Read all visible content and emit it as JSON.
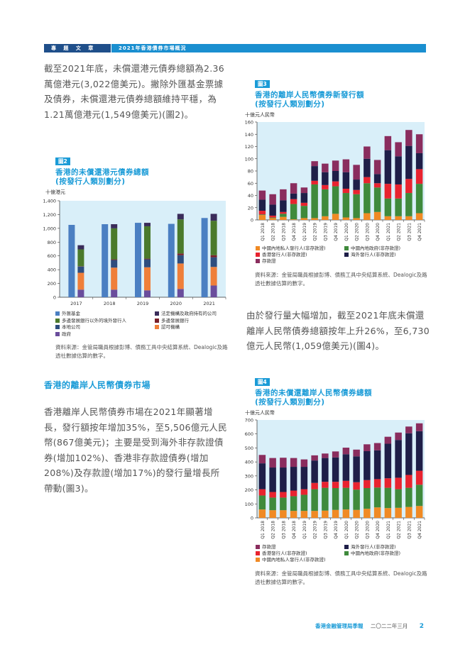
{
  "header": {
    "section": "專 題 文 章",
    "article": "2021年香港債券市場概況"
  },
  "paragraphs": [
    "截至2021年底，未償還港元債券總額為2.36萬億港元(3,022億美元)。撇除外匯基金票據及債券，未償還港元債券總額維持平穩，為1.21萬億港元(1,549億美元)(圖2)。",
    "香港離岸人民幣債券市場在2021年顯著增長，發行額按年增加35%，至5,506億元人民幣(867億美元)；主要是受到海外非存款證債券(增加102%)、香港非存款證債券(增加208%)及存款證(增加17%)的發行量增長所帶動(圖3)。",
    "由於發行量大幅增加，截至2021年底未償還離岸人民幣債券總額按年上升26%，至6,730億元人民幣(1,059億美元)(圖4)。"
  ],
  "section_heading": "香港的離岸人民幣債券市場",
  "footer": {
    "publication": "香港金融管理局季報",
    "date": "二〇二二年三月",
    "page": "2"
  },
  "colors": {
    "accent": "#1a9bd7",
    "header_dark": "#1f4f8a",
    "plot_bg": "#d9eff9"
  },
  "chart_data": [
    {
      "type": "bar",
      "tag": "圖2",
      "title": "香港的未償還港元債券總額",
      "subtitle": "(按發行人類別劃分)",
      "ylabel": "十億港元",
      "ylim": [
        0,
        1400
      ],
      "yticks": [
        0,
        200,
        400,
        600,
        800,
        1000,
        1200,
        1400
      ],
      "ytick_labels": [
        "0",
        "200",
        "400",
        "600",
        "800",
        "1,000",
        "1,200",
        "1,400"
      ],
      "categories": [
        "2017",
        "2018",
        "2019",
        "2020",
        "2021"
      ],
      "single_series": {
        "name": "外匯基金",
        "color": "#4b7fc2",
        "values": [
          1050,
          1060,
          1080,
          1065,
          1150
        ]
      },
      "stacked_series": [
        {
          "name": "政府",
          "color": "#6a4d9c",
          "values": [
            110,
            110,
            100,
            120,
            170
          ]
        },
        {
          "name": "認可機構",
          "color": "#ef7f3a",
          "values": [
            245,
            320,
            335,
            370,
            270
          ]
        },
        {
          "name": "本地公司",
          "color": "#2e4d7e",
          "values": [
            90,
            110,
            115,
            120,
            140
          ]
        },
        {
          "name": "多邊發展銀行",
          "color": "#7a1f2a",
          "values": [
            5,
            10,
            10,
            25,
            30
          ]
        },
        {
          "name": "多邊發展銀行以外的境外發行人",
          "color": "#4b7a2c",
          "values": [
            245,
            450,
            470,
            495,
            500
          ]
        },
        {
          "name": "法定機構及政府持有的公司",
          "color": "#3a2c5a",
          "values": [
            60,
            60,
            50,
            80,
            100
          ]
        }
      ],
      "legend_order": [
        "外匯基金",
        "法定機構及政府持有的公司",
        "多邊發展銀行以外的境外發行人",
        "多邊發展銀行",
        "本地公司",
        "認可機構",
        "政府"
      ],
      "source": "資料來源：金管局職員根據彭博、債務工具中央結算系統、Dealogic及路透社數據估算的數字。"
    },
    {
      "type": "bar",
      "tag": "圖3",
      "title": "香港的離岸人民幣債券新發行額",
      "subtitle": "(按發行人類別劃分)",
      "ylabel": "十億元人民幣",
      "ylim": [
        0,
        160
      ],
      "yticks": [
        0,
        20,
        40,
        60,
        80,
        100,
        120,
        140,
        160
      ],
      "ytick_labels": [
        "0",
        "20",
        "40",
        "60",
        "80",
        "100",
        "120",
        "140",
        "160"
      ],
      "categories": [
        "Q1 2018",
        "Q2 2018",
        "Q3 2018",
        "Q4 2018",
        "Q1 2019",
        "Q2 2019",
        "Q3 2019",
        "Q4 2019",
        "Q1 2020",
        "Q2 2020",
        "Q3 2020",
        "Q4 2020",
        "Q1 2021",
        "Q2 2021",
        "Q3 2021",
        "Q4 2021"
      ],
      "stacked_series": [
        {
          "name": "中國內地私人發行人(非存款證)",
          "color": "#f08a24",
          "values": [
            8,
            3,
            5,
            1,
            3,
            3,
            6,
            10,
            4,
            3,
            11,
            13,
            6,
            6,
            6,
            11
          ]
        },
        {
          "name": "中國內地政府(非存款證)",
          "color": "#3f8a3c",
          "values": [
            1,
            1,
            5,
            25,
            20,
            55,
            44,
            45,
            40,
            39,
            49,
            40,
            29,
            29,
            38,
            48
          ]
        },
        {
          "name": "香港發行人(非存款證)",
          "color": "#e8232f",
          "values": [
            6,
            3,
            3,
            8,
            5,
            6,
            7,
            8,
            7,
            7,
            10,
            7,
            24,
            23,
            23,
            24
          ]
        },
        {
          "name": "海外發行人(非存款證)",
          "color": "#1e1e48",
          "values": [
            18,
            18,
            19,
            9,
            16,
            24,
            21,
            17,
            27,
            17,
            30,
            15,
            55,
            46,
            54,
            26
          ]
        },
        {
          "name": "存款證",
          "color": "#8a2d5e",
          "values": [
            15,
            17,
            18,
            17,
            9,
            8,
            14,
            17,
            21,
            24,
            20,
            23,
            23,
            23,
            26,
            31
          ]
        }
      ],
      "legend_order": [
        "中國內地私人發行人(非存款證)",
        "中國內地政府(非存款證)",
        "香港發行人(非存款證)",
        "海外發行人(非存款證)",
        "存款證"
      ],
      "source": "資料來源：金管局職員根據彭博、債務工具中央結算系統、Dealogic及路透社數據估算的數字。"
    },
    {
      "type": "bar",
      "tag": "圖4",
      "title": "香港的未償還離岸人民幣債券總額",
      "subtitle": "(按發行人類別劃分)",
      "ylabel": "十億元人民幣",
      "ylim": [
        0,
        700
      ],
      "yticks": [
        0,
        100,
        200,
        300,
        400,
        500,
        600,
        700
      ],
      "ytick_labels": [
        "0",
        "100",
        "200",
        "300",
        "400",
        "500",
        "600",
        "700"
      ],
      "categories": [
        "Q1 2018",
        "Q2 2018",
        "Q3 2018",
        "Q4 2018",
        "Q1 2019",
        "Q2 2019",
        "Q3 2019",
        "Q4 2019",
        "Q1 2020",
        "Q2 2020",
        "Q3 2020",
        "Q4 2020",
        "Q1 2021",
        "Q2 2021",
        "Q3 2021",
        "Q4 2021"
      ],
      "stacked_series": [
        {
          "name": "中國內地私人發行人(非存款證)",
          "color": "#f08a24",
          "values": [
            60,
            55,
            55,
            50,
            50,
            50,
            52,
            57,
            60,
            57,
            65,
            75,
            70,
            72,
            78,
            85
          ]
        },
        {
          "name": "中國內地政府(非存款證)",
          "color": "#3f8a3c",
          "values": [
            100,
            90,
            90,
            105,
            115,
            155,
            163,
            156,
            155,
            145,
            148,
            142,
            145,
            133,
            137,
            152
          ]
        },
        {
          "name": "香港發行人(非存款證)",
          "color": "#e8232f",
          "values": [
            45,
            40,
            40,
            40,
            40,
            45,
            43,
            45,
            50,
            53,
            57,
            60,
            68,
            82,
            92,
            100
          ]
        },
        {
          "name": "海外發行人(非存款證)",
          "color": "#1e1e48",
          "values": [
            185,
            175,
            175,
            170,
            160,
            160,
            170,
            174,
            190,
            185,
            207,
            206,
            247,
            270,
            298,
            283
          ]
        },
        {
          "name": "存款證",
          "color": "#8a2d5e",
          "values": [
            60,
            68,
            70,
            63,
            53,
            37,
            32,
            43,
            47,
            48,
            49,
            52,
            50,
            53,
            48,
            56
          ]
        }
      ],
      "legend_order": [
        "存款證",
        "海外發行人(非存款證)",
        "香港發行人(非存款證)",
        "中國內地政府(非存款證)",
        "中國內地私人發行人(非存款證)"
      ],
      "source": "資料來源：金管局職員根據彭博、債務工具中央結算系統、Dealogic及路透社數據估算的數字。"
    }
  ]
}
